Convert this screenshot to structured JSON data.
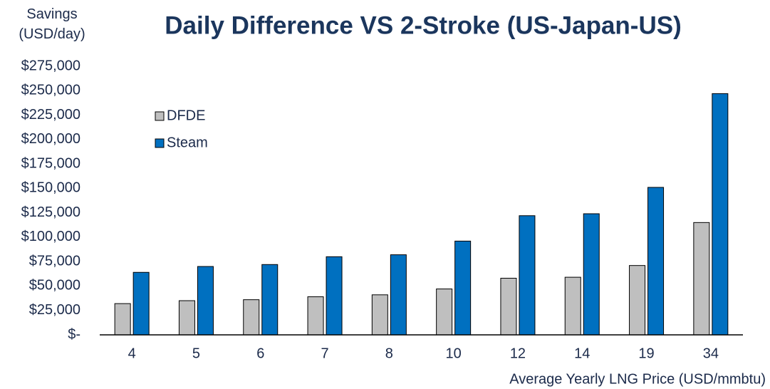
{
  "chart_data": {
    "type": "bar",
    "title": "Daily Difference VS 2-Stroke (US-Japan-US)",
    "ylabel": "Savings (USD/day)",
    "xlabel": "Average Yearly LNG Price (USD/mmbtu)",
    "categories": [
      "4",
      "5",
      "6",
      "7",
      "8",
      "10",
      "12",
      "14",
      "19",
      "34"
    ],
    "series": [
      {
        "name": "DFDE",
        "color": "#bfbfbf",
        "values": [
          32000,
          35000,
          36000,
          39000,
          41000,
          47000,
          58000,
          59000,
          71000,
          115000
        ]
      },
      {
        "name": "Steam",
        "color": "#0070c0",
        "values": [
          64000,
          70000,
          72000,
          80000,
          82000,
          96000,
          122000,
          124000,
          151000,
          247000
        ]
      }
    ],
    "ylim": [
      0,
      275000
    ],
    "yticks": [
      {
        "value": 0,
        "label": "$-"
      },
      {
        "value": 25000,
        "label": "$25,000"
      },
      {
        "value": 50000,
        "label": "$50,000"
      },
      {
        "value": 75000,
        "label": "$75,000"
      },
      {
        "value": 100000,
        "label": "$100,000"
      },
      {
        "value": 125000,
        "label": "$125,000"
      },
      {
        "value": 150000,
        "label": "$150,000"
      },
      {
        "value": 175000,
        "label": "$175,000"
      },
      {
        "value": 200000,
        "label": "$200,000"
      },
      {
        "value": 225000,
        "label": "$225,000"
      },
      {
        "value": 250000,
        "label": "$250,000"
      },
      {
        "value": 275000,
        "label": "$275,000"
      }
    ],
    "grid": false,
    "legend": "upper left"
  }
}
